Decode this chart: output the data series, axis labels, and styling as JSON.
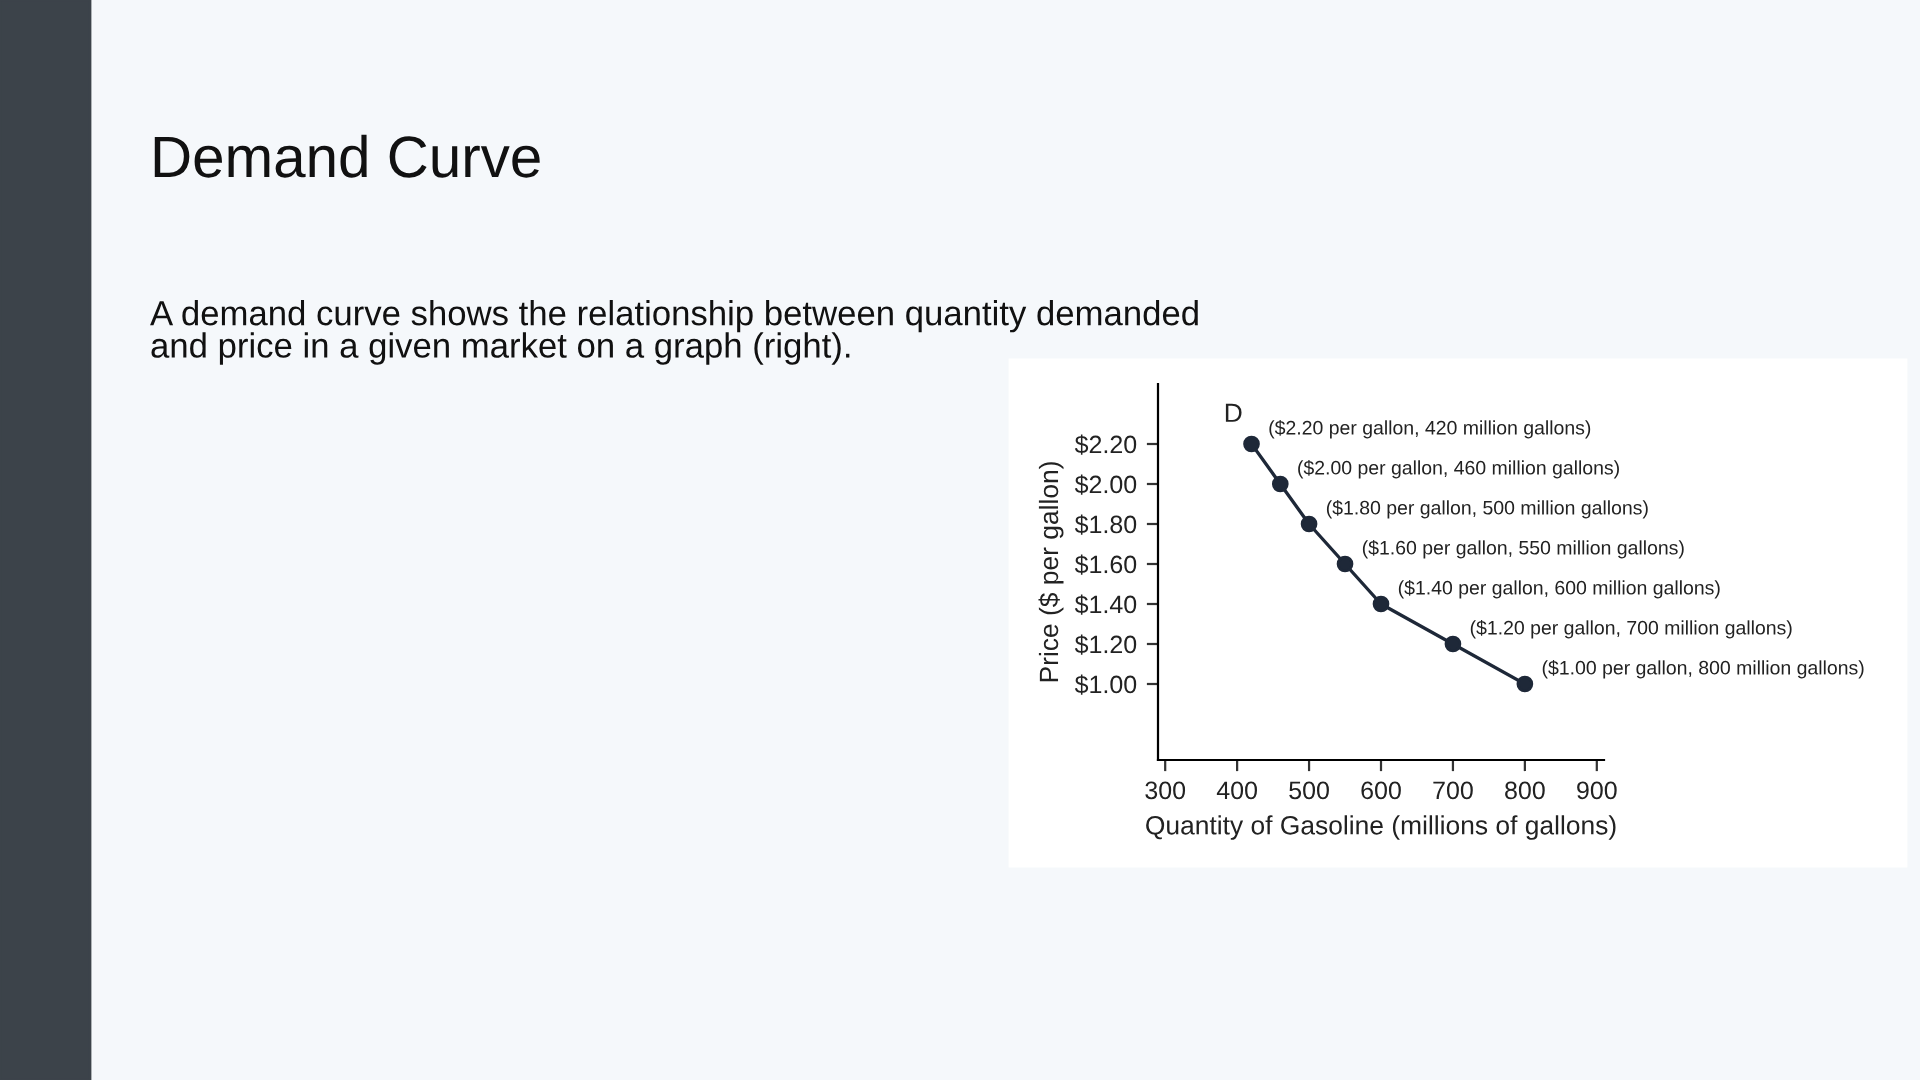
{
  "chart_data": {
    "type": "line",
    "title": "Demand Curve",
    "subtitle": "A demand curve shows the relationship between quantity demanded and price in a given market on a graph (right).",
    "xlabel": "Quantity of Gasoline (millions of gallons)",
    "ylabel": "Price ($ per gallon)",
    "x": [
      420,
      460,
      500,
      550,
      600,
      700,
      800
    ],
    "series": [
      {
        "color": "#1e2838",
        "values": [
          2.2,
          2.0,
          1.8,
          1.6,
          1.4,
          1.2,
          1.0
        ]
      }
    ],
    "xlim": [
      290,
      910
    ],
    "xticks": [
      300,
      400,
      500,
      600,
      700,
      800,
      900
    ],
    "ylim": [
      0.62,
      2.5
    ],
    "yticks": [
      {
        "value": 1.0,
        "label": "$1.00"
      },
      {
        "value": 1.2,
        "label": "$1.20"
      },
      {
        "value": 1.4,
        "label": "$1.40"
      },
      {
        "value": 1.6,
        "label": "$1.60"
      },
      {
        "value": 1.8,
        "label": "$1.80"
      },
      {
        "value": 2.0,
        "label": "$2.00"
      },
      {
        "value": 2.2,
        "label": "$2.20"
      }
    ],
    "grid": false,
    "legend": false,
    "marker": "circle",
    "line_style": "solid",
    "annotations": [
      {
        "text": "D",
        "x": 420,
        "y": 2.2
      },
      {
        "text": "($2.20 per gallon, 420 million gallons)",
        "x": 420,
        "y": 2.2
      },
      {
        "text": "($2.00 per gallon, 460 million gallons)",
        "x": 460,
        "y": 2.0
      },
      {
        "text": "($1.80 per gallon, 500 million gallons)",
        "x": 500,
        "y": 1.8
      },
      {
        "text": "($1.60 per gallon, 550 million gallons)",
        "x": 550,
        "y": 1.6
      },
      {
        "text": "($1.40 per gallon, 600 million gallons)",
        "x": 600,
        "y": 1.4
      },
      {
        "text": "($1.20 per gallon, 700 million gallons)",
        "x": 700,
        "y": 1.2
      },
      {
        "text": "($1.00 per gallon, 800 million gallons)",
        "x": 800,
        "y": 1.0
      }
    ]
  }
}
